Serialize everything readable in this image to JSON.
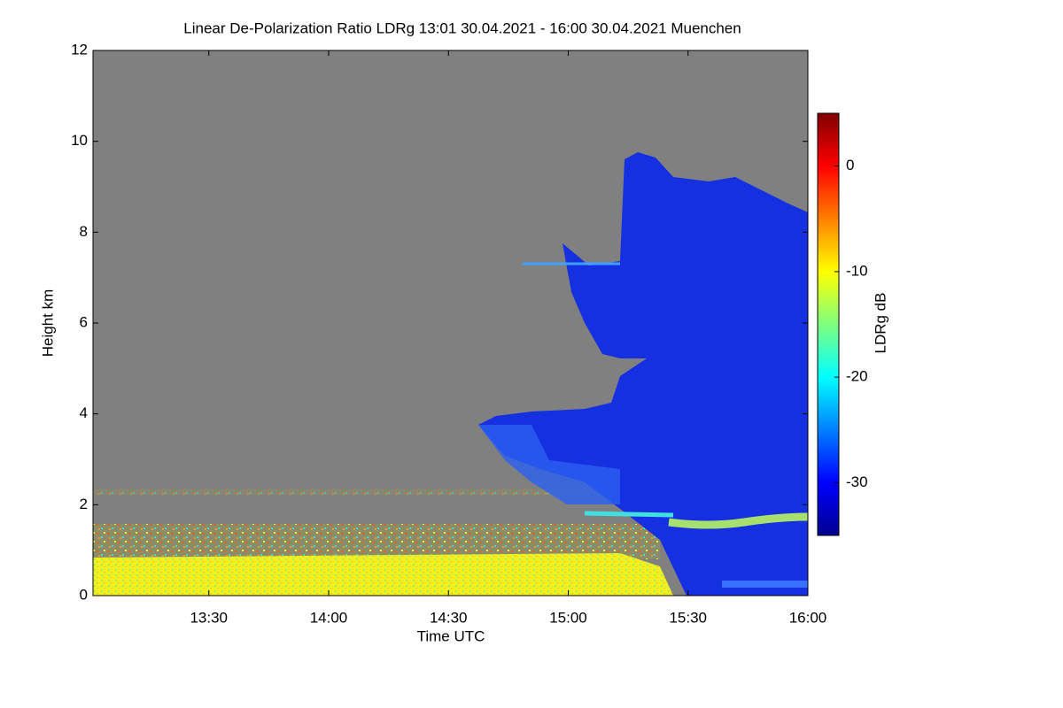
{
  "chart_data": {
    "type": "heatmap",
    "title": "Linear De-Polarization Ratio LDRg   13:01 30.04.2021 - 16:00 30.04.2021 Muenchen",
    "x_label": "Time UTC",
    "y_label": "Height km",
    "colorbar_label": "LDRg dB",
    "xlim": [
      "13:01",
      "16:00"
    ],
    "xticks": [
      "13:30",
      "14:00",
      "14:30",
      "15:00",
      "15:30",
      "16:00"
    ],
    "ylim": [
      0,
      12
    ],
    "yticks": [
      0,
      2,
      4,
      6,
      8,
      10,
      12
    ],
    "clim": [
      -35,
      5
    ],
    "cticks": [
      0,
      -10,
      -20,
      -30
    ],
    "colormap": "jet"
  }
}
